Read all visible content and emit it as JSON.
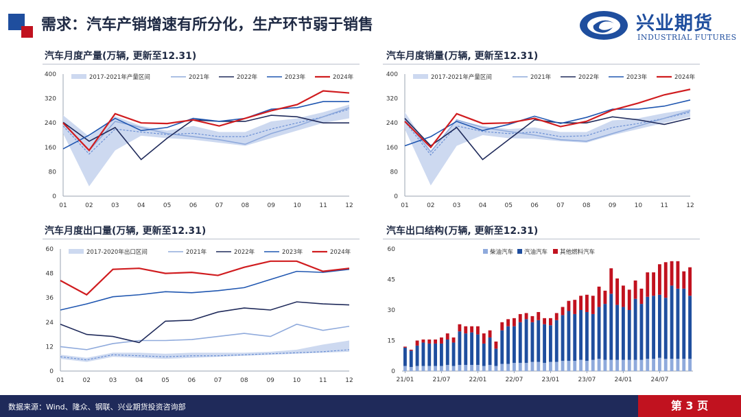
{
  "header": {
    "title": "需求：汽车产销增速有所分化，生产环节弱于销售",
    "logo_cn": "兴业期货",
    "logo_en": "INDUSTRIAL FUTURES"
  },
  "footer": {
    "source": "数据来源：Wind、隆众、钢联、兴业期货投资咨询部",
    "page": "第 3 页"
  },
  "colors": {
    "band": "#cdd9f0",
    "y2021": "#8faadc",
    "y2022": "#1f2a5a",
    "y2023": "#1f56b0",
    "y2024": "#d01c1f",
    "avg_dash": "#6a8fd4",
    "diesel": "#8faadc",
    "gasoline": "#1f4e9e",
    "other_fuel": "#c1121f",
    "brand": "#1f4e9e",
    "accent": "#c1121f"
  },
  "chart_data": [
    {
      "type": "line",
      "title": "汽车月度产量(万辆, 更新至12.31)",
      "x": [
        "01",
        "02",
        "03",
        "04",
        "05",
        "06",
        "07",
        "08",
        "09",
        "10",
        "11",
        "12"
      ],
      "ylim": [
        0,
        400
      ],
      "yticks": [
        0,
        80,
        160,
        240,
        320,
        400
      ],
      "band": {
        "name": "2017-2021年产量区间",
        "lower": [
          205,
          32,
          150,
          198,
          190,
          185,
          175,
          165,
          190,
          215,
          240,
          255
        ],
        "upper": [
          265,
          195,
          262,
          230,
          215,
          230,
          210,
          210,
          245,
          255,
          275,
          300
        ],
        "mean": [
          230,
          138,
          220,
          210,
          202,
          206,
          195,
          195,
          220,
          240,
          260,
          285
        ]
      },
      "series": [
        {
          "name": "2021年",
          "values": [
            238,
            150,
            245,
            225,
            205,
            195,
            185,
            170,
            205,
            230,
            260,
            290
          ]
        },
        {
          "name": "2022年",
          "values": [
            242,
            180,
            225,
            120,
            190,
            250,
            245,
            245,
            265,
            260,
            240,
            240
          ]
        },
        {
          "name": "2023年",
          "values": [
            155,
            200,
            255,
            215,
            225,
            255,
            245,
            255,
            285,
            290,
            310,
            310
          ]
        },
        {
          "name": "2024年",
          "values": [
            240,
            150,
            270,
            240,
            238,
            250,
            230,
            255,
            280,
            300,
            345,
            338
          ]
        }
      ]
    },
    {
      "type": "line",
      "title": "汽车月度销量(万辆, 更新至12.31)",
      "x": [
        "01",
        "02",
        "03",
        "04",
        "05",
        "06",
        "07",
        "08",
        "09",
        "10",
        "11",
        "12"
      ],
      "ylim": [
        0,
        400
      ],
      "yticks": [
        0,
        80,
        160,
        240,
        320,
        400
      ],
      "band": {
        "name": "2017-2021年产量区间",
        "lower": [
          220,
          35,
          165,
          200,
          190,
          188,
          180,
          175,
          200,
          220,
          240,
          260
        ],
        "upper": [
          275,
          150,
          250,
          230,
          220,
          225,
          210,
          210,
          248,
          255,
          272,
          285
        ],
        "mean": [
          245,
          135,
          230,
          212,
          205,
          210,
          195,
          198,
          225,
          238,
          255,
          275
        ]
      },
      "series": [
        {
          "name": "2021年",
          "values": [
            252,
            145,
            250,
            225,
            212,
            200,
            185,
            180,
            205,
            230,
            255,
            280
          ]
        },
        {
          "name": "2022年",
          "values": [
            255,
            165,
            225,
            120,
            185,
            250,
            240,
            240,
            260,
            250,
            235,
            255
          ]
        },
        {
          "name": "2023年",
          "values": [
            165,
            195,
            245,
            215,
            235,
            262,
            238,
            258,
            285,
            285,
            295,
            315
          ]
        },
        {
          "name": "2024年",
          "values": [
            245,
            160,
            270,
            238,
            240,
            255,
            228,
            245,
            282,
            305,
            332,
            350
          ]
        }
      ]
    },
    {
      "type": "line",
      "title": "汽车月度出口量(万辆, 更新至12.31)",
      "x": [
        "01",
        "02",
        "03",
        "04",
        "05",
        "06",
        "07",
        "08",
        "09",
        "10",
        "11",
        "12"
      ],
      "ylim": [
        0,
        60
      ],
      "yticks": [
        0,
        12,
        24,
        36,
        48,
        60
      ],
      "band": {
        "name": "2017-2020年出口区间",
        "lower": [
          6,
          4.5,
          7,
          6.5,
          6,
          6.5,
          7,
          7.5,
          8,
          8.5,
          9,
          9.5
        ],
        "upper": [
          8,
          6.5,
          9,
          9,
          8.5,
          9,
          9,
          9,
          9.5,
          10.5,
          13,
          15
        ],
        "mean": [
          7,
          5.5,
          8,
          7.5,
          7,
          7.5,
          7.5,
          8,
          8.5,
          9,
          9.5,
          10.5
        ]
      },
      "series": [
        {
          "name": "2021年",
          "values": [
            12,
            10.5,
            13.5,
            15,
            15,
            15.5,
            17,
            18.5,
            17,
            23,
            20,
            22
          ]
        },
        {
          "name": "2022年",
          "values": [
            23,
            18,
            17,
            14,
            24.5,
            25,
            29,
            31,
            30,
            34,
            33,
            32.5
          ]
        },
        {
          "name": "2023年",
          "values": [
            30,
            33,
            36.5,
            37.5,
            39,
            38.5,
            39.5,
            41,
            45,
            49,
            48.5,
            50
          ]
        },
        {
          "name": "2024年",
          "values": [
            44.5,
            37.5,
            50,
            50.5,
            48,
            48.5,
            47,
            51,
            54,
            54,
            49,
            50.5
          ]
        }
      ]
    },
    {
      "type": "bar",
      "stacked": true,
      "title": "汽车出口结构(万辆, 更新至12.31)",
      "ylim": [
        0,
        60
      ],
      "yticks": [
        0,
        15,
        30,
        45,
        60
      ],
      "tick_labels": [
        "21/01",
        "21/07",
        "22/01",
        "22/07",
        "23/01",
        "23/07",
        "24/01",
        "24/07"
      ],
      "categories": [
        "21/01",
        "21/02",
        "21/03",
        "21/04",
        "21/05",
        "21/06",
        "21/07",
        "21/08",
        "21/09",
        "21/10",
        "21/11",
        "21/12",
        "22/01",
        "22/02",
        "22/03",
        "22/04",
        "22/05",
        "22/06",
        "22/07",
        "22/08",
        "22/09",
        "22/10",
        "22/11",
        "22/12",
        "23/01",
        "23/02",
        "23/03",
        "23/04",
        "23/05",
        "23/06",
        "23/07",
        "23/08",
        "23/09",
        "23/10",
        "23/11",
        "23/12",
        "24/01",
        "24/02",
        "24/03",
        "24/04",
        "24/05",
        "24/06",
        "24/07",
        "24/08",
        "24/09",
        "24/10",
        "24/11",
        "24/12"
      ],
      "series": [
        {
          "name": "柴油汽车",
          "values": [
            2.5,
            2.0,
            2.5,
            2.5,
            2.5,
            2.5,
            2.5,
            3.0,
            2.5,
            3.0,
            3.0,
            3.0,
            3.0,
            2.5,
            3.0,
            2.5,
            3.5,
            3.5,
            4.0,
            4.0,
            4.0,
            4.5,
            4.5,
            4.0,
            4.5,
            4.5,
            5.0,
            5.0,
            5.0,
            5.5,
            5.0,
            5.5,
            6.0,
            5.5,
            5.5,
            5.5,
            5.5,
            5.5,
            5.5,
            5.5,
            6.0,
            6.0,
            6.5,
            6.0,
            6.0,
            6.0,
            6.0,
            6.0
          ]
        },
        {
          "name": "汽油汽车",
          "values": [
            9.0,
            8.0,
            10.0,
            11.5,
            11.0,
            11.0,
            11.0,
            12.5,
            11.5,
            16.5,
            15.5,
            16.0,
            15.0,
            11.0,
            13.5,
            8.5,
            16.5,
            18.5,
            18.0,
            20.0,
            21.5,
            19.5,
            20.5,
            19.0,
            18.0,
            20.5,
            22.5,
            24.5,
            23.0,
            24.5,
            24.0,
            22.5,
            25.5,
            27.5,
            32.5,
            27.0,
            26.0,
            24.5,
            30.0,
            27.5,
            30.5,
            31.0,
            31.0,
            30.0,
            36.0,
            34.5,
            34.5,
            31.0
          ]
        },
        {
          "name": "其他燃料汽车",
          "values": [
            0.5,
            0.5,
            2.5,
            1.5,
            2.0,
            2.0,
            3.0,
            3.0,
            2.5,
            3.5,
            3.5,
            3.0,
            4.0,
            5.0,
            3.5,
            3.5,
            4.0,
            3.5,
            4.0,
            4.0,
            3.0,
            3.0,
            4.0,
            3.0,
            3.5,
            3.5,
            4.0,
            5.0,
            7.0,
            7.0,
            8.5,
            9.0,
            10.0,
            6.5,
            12.5,
            13.0,
            10.5,
            10.0,
            9.0,
            7.5,
            12.0,
            11.5,
            15.0,
            17.5,
            12.0,
            13.5,
            8.5,
            14.0
          ]
        }
      ]
    }
  ]
}
